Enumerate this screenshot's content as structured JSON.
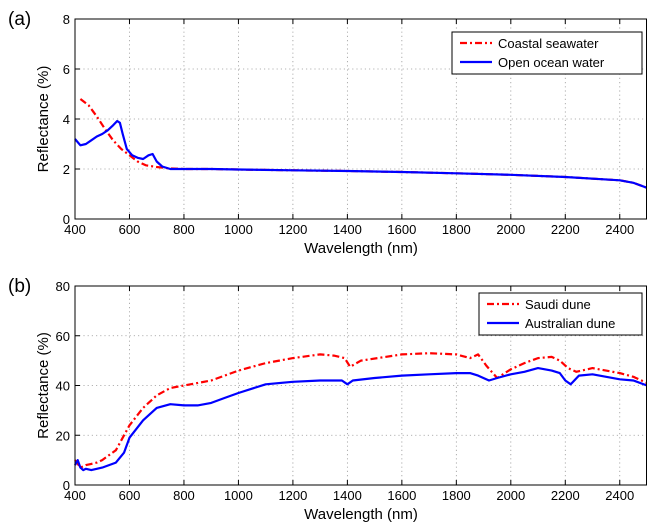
{
  "figure": {
    "panels": [
      {
        "tag": "(a)",
        "ylabel": "Reflectance (%)",
        "xlabel": "Wavelength (nm)"
      },
      {
        "tag": "(b)",
        "ylabel": "Reflectance (%)",
        "xlabel": "Wavelength (nm)"
      }
    ]
  },
  "chart_data": [
    {
      "type": "line",
      "panel_tag": "(a)",
      "xlabel": "Wavelength (nm)",
      "ylabel": "Reflectance (%)",
      "xlim": [
        400,
        2500
      ],
      "ylim": [
        0,
        8
      ],
      "xticks": [
        400,
        600,
        800,
        1000,
        1200,
        1400,
        1600,
        1800,
        2000,
        2200,
        2400
      ],
      "yticks": [
        0,
        2,
        4,
        6,
        8
      ],
      "grid": true,
      "legend_position": "top-right",
      "series": [
        {
          "name": "Coastal seawater",
          "color": "#ff0000",
          "style": "dash-dot",
          "x": [
            420,
            450,
            480,
            510,
            540,
            570,
            600,
            630,
            660,
            700,
            750,
            800,
            900,
            1000,
            1200,
            1400,
            1600,
            1800,
            2000,
            2200,
            2400,
            2450,
            2500
          ],
          "y": [
            4.8,
            4.55,
            4.1,
            3.6,
            3.15,
            2.8,
            2.55,
            2.3,
            2.15,
            2.08,
            2.02,
            2.0,
            2.0,
            1.98,
            1.95,
            1.92,
            1.88,
            1.83,
            1.77,
            1.68,
            1.55,
            1.45,
            1.25
          ]
        },
        {
          "name": "Open ocean water",
          "color": "#0000ff",
          "style": "solid",
          "x": [
            400,
            420,
            440,
            460,
            480,
            500,
            520,
            540,
            555,
            565,
            575,
            590,
            610,
            630,
            650,
            670,
            685,
            700,
            720,
            750,
            800,
            900,
            1000,
            1200,
            1400,
            1600,
            1800,
            2000,
            2200,
            2400,
            2450,
            2500
          ],
          "y": [
            3.2,
            2.95,
            3.0,
            3.15,
            3.3,
            3.4,
            3.55,
            3.75,
            3.92,
            3.85,
            3.4,
            2.8,
            2.55,
            2.45,
            2.4,
            2.55,
            2.6,
            2.3,
            2.1,
            2.0,
            2.0,
            2.0,
            1.98,
            1.95,
            1.92,
            1.88,
            1.83,
            1.77,
            1.68,
            1.55,
            1.45,
            1.25
          ]
        }
      ]
    },
    {
      "type": "line",
      "panel_tag": "(b)",
      "xlabel": "Wavelength (nm)",
      "ylabel": "Reflectance (%)",
      "xlim": [
        400,
        2500
      ],
      "ylim": [
        0,
        80
      ],
      "xticks": [
        400,
        600,
        800,
        1000,
        1200,
        1400,
        1600,
        1800,
        2000,
        2200,
        2400
      ],
      "yticks": [
        0,
        20,
        40,
        60,
        80
      ],
      "grid": true,
      "legend_position": "top-right",
      "series": [
        {
          "name": "Saudi dune",
          "color": "#ff0000",
          "style": "dash-dot",
          "x": [
            400,
            420,
            440,
            460,
            480,
            500,
            550,
            600,
            650,
            700,
            750,
            800,
            900,
            1000,
            1100,
            1200,
            1300,
            1350,
            1390,
            1410,
            1450,
            1600,
            1700,
            1800,
            1850,
            1880,
            1910,
            1930,
            1950,
            2000,
            2050,
            2100,
            2150,
            2180,
            2210,
            2240,
            2300,
            2400,
            2450,
            2500
          ],
          "y": [
            10,
            7,
            8,
            8.5,
            9,
            10,
            14,
            24,
            31,
            36,
            39,
            40,
            42,
            46,
            49,
            51,
            52.5,
            52,
            51,
            47.5,
            50,
            52.5,
            53,
            52.5,
            51,
            52.5,
            48,
            45.5,
            43,
            46.5,
            49,
            51,
            51.5,
            50,
            47,
            45.5,
            47,
            45,
            43.5,
            41
          ]
        },
        {
          "name": "Australian dune",
          "color": "#0000ff",
          "style": "solid",
          "x": [
            400,
            410,
            420,
            430,
            440,
            460,
            480,
            500,
            550,
            580,
            600,
            650,
            700,
            750,
            800,
            850,
            900,
            950,
            1000,
            1100,
            1200,
            1300,
            1380,
            1400,
            1420,
            1500,
            1600,
            1700,
            1800,
            1850,
            1880,
            1920,
            1950,
            2000,
            2050,
            2100,
            2150,
            2180,
            2200,
            2220,
            2250,
            2300,
            2400,
            2450,
            2500
          ],
          "y": [
            8,
            10,
            7,
            6,
            6.5,
            6,
            6.5,
            7,
            9,
            13,
            19,
            26,
            31,
            32.5,
            32,
            32,
            33,
            35,
            37,
            40.5,
            41.5,
            42,
            42,
            40.5,
            42,
            43,
            44,
            44.5,
            45,
            45,
            44,
            42,
            43,
            44.5,
            45.5,
            47,
            46,
            45,
            42,
            40.5,
            44,
            44.5,
            42.5,
            42,
            40
          ]
        }
      ]
    }
  ]
}
